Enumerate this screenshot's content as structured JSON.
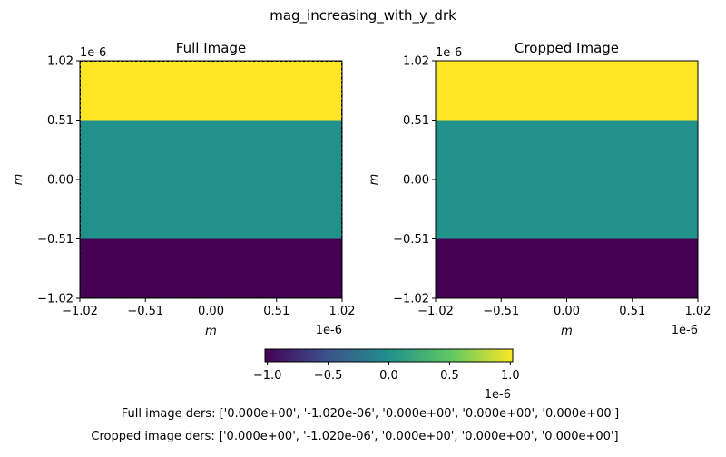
{
  "figure": {
    "suptitle": "mag_increasing_with_y_drk",
    "footer_lines": [
      "Full image ders: ['0.000e+00', '-1.020e-06', '0.000e+00', '0.000e+00', '0.000e+00']",
      "Cropped image ders: ['0.000e+00', '-1.020e-06', '0.000e+00', '0.000e+00', '0.000e+00']"
    ]
  },
  "chart_data": [
    {
      "type": "heatmap",
      "title": "Full Image",
      "xlabel": "m",
      "ylabel": "m",
      "x_offset_label": "1e-6",
      "y_offset_label": "1e-6",
      "xlim": [
        -1.02,
        1.02
      ],
      "ylim": [
        -1.02,
        1.02
      ],
      "xticks": [
        "−1.02",
        "−0.51",
        "0.00",
        "0.51",
        "1.02"
      ],
      "yticks": [
        "−1.02",
        "−0.51",
        "0.00",
        "0.51",
        "1.02"
      ],
      "bands": [
        {
          "y_from": -1.02,
          "y_to": -0.51,
          "value": -1.02,
          "color": "#440154"
        },
        {
          "y_from": -0.51,
          "y_to": 0.51,
          "value": 0.0,
          "color": "#21918c"
        },
        {
          "y_from": 0.51,
          "y_to": 1.02,
          "value": 1.02,
          "color": "#fde725"
        }
      ],
      "dashed_frame": true
    },
    {
      "type": "heatmap",
      "title": "Cropped Image",
      "xlabel": "m",
      "ylabel": "m",
      "x_offset_label": "1e-6",
      "y_offset_label": "1e-6",
      "xlim": [
        -1.02,
        1.02
      ],
      "ylim": [
        -1.02,
        1.02
      ],
      "xticks": [
        "−1.02",
        "−0.51",
        "0.00",
        "0.51",
        "1.02"
      ],
      "yticks": [
        "−1.02",
        "−0.51",
        "0.00",
        "0.51",
        "1.02"
      ],
      "bands": [
        {
          "y_from": -1.02,
          "y_to": -0.51,
          "value": -1.02,
          "color": "#440154"
        },
        {
          "y_from": -0.51,
          "y_to": 0.51,
          "value": 0.0,
          "color": "#21918c"
        },
        {
          "y_from": 0.51,
          "y_to": 1.02,
          "value": 1.02,
          "color": "#fde725"
        }
      ],
      "dashed_frame": false
    }
  ],
  "colorbar": {
    "range": [
      -1.02,
      1.02
    ],
    "ticks": [
      -1.0,
      -0.5,
      0.0,
      0.5,
      1.0
    ],
    "tick_labels": [
      "−1.0",
      "−0.5",
      "0.0",
      "0.5",
      "1.0"
    ],
    "offset_label": "1e-6",
    "colormap": "viridis",
    "stops": [
      "#440154",
      "#3b528b",
      "#21918c",
      "#5ec962",
      "#fde725"
    ]
  }
}
